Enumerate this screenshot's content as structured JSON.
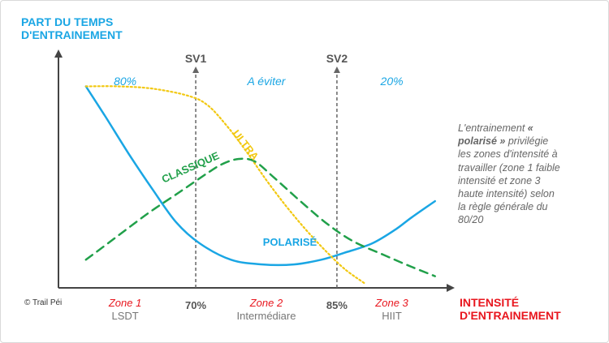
{
  "chart_data": {
    "type": "line",
    "title": "",
    "ylabel": "PART DU TEMPS D'ENTRAINEMENT",
    "xlabel": "INTENSITÉ D'ENTRAINEMENT",
    "xlim": [
      0,
      100
    ],
    "ylim": [
      0,
      100
    ],
    "thresholds": [
      {
        "name": "SV1",
        "x": 35,
        "tick_label": "70%"
      },
      {
        "name": "SV2",
        "x": 71,
        "tick_label": "85%"
      }
    ],
    "bands": [
      {
        "label": "80%",
        "x": 17
      },
      {
        "label": "A éviter",
        "x": 53
      },
      {
        "label": "20%",
        "x": 85
      }
    ],
    "zones": [
      {
        "name": "Zone 1",
        "sub": "LSDT",
        "x": 17
      },
      {
        "name": "Zone 2",
        "sub": "Intermédiare",
        "x": 53
      },
      {
        "name": "Zone 3",
        "sub": "HIIT",
        "x": 85
      }
    ],
    "series": [
      {
        "name": "POLARISÉ",
        "color": "#1aa6e4",
        "style": "solid",
        "label_at": [
          59,
          18
        ],
        "points": [
          [
            7,
            86
          ],
          [
            12,
            73
          ],
          [
            18,
            57
          ],
          [
            24,
            42
          ],
          [
            30,
            28
          ],
          [
            36,
            19
          ],
          [
            44,
            12
          ],
          [
            52,
            10
          ],
          [
            60,
            10
          ],
          [
            67,
            12
          ],
          [
            73,
            15
          ],
          [
            80,
            19
          ],
          [
            86,
            25
          ],
          [
            90,
            30
          ],
          [
            96,
            37
          ]
        ]
      },
      {
        "name": "ULTRA",
        "color": "#f2c811",
        "style": "dotted",
        "label_at": [
          47,
          60
        ],
        "points": [
          [
            7,
            86
          ],
          [
            15,
            86
          ],
          [
            24,
            85
          ],
          [
            33,
            82
          ],
          [
            38,
            78
          ],
          [
            43,
            69
          ],
          [
            48,
            58
          ],
          [
            53,
            46
          ],
          [
            58,
            35
          ],
          [
            63,
            25
          ],
          [
            68,
            16
          ],
          [
            73,
            8
          ],
          [
            78,
            2
          ]
        ]
      },
      {
        "name": "CLASSIQUE",
        "color": "#21a04a",
        "style": "dashed",
        "label_at": [
          34,
          50
        ],
        "points": [
          [
            7,
            12
          ],
          [
            15,
            22
          ],
          [
            23,
            32
          ],
          [
            31,
            41
          ],
          [
            38,
            49
          ],
          [
            42,
            53
          ],
          [
            46,
            55
          ],
          [
            50,
            54
          ],
          [
            55,
            47
          ],
          [
            61,
            38
          ],
          [
            68,
            28
          ],
          [
            75,
            20
          ],
          [
            83,
            14
          ],
          [
            90,
            9
          ],
          [
            96,
            5
          ]
        ]
      }
    ]
  },
  "axes": {
    "y_title_line1": "PART DU TEMPS",
    "y_title_line2": "D'ENTRAINEMENT",
    "x_title_line1": "INTENSITÉ",
    "x_title_line2": "D'ENTRAINEMENT"
  },
  "credit": "© Trail Péi",
  "side_note": {
    "part1": "L'entrainement",
    "emph": "« polarisé »",
    "part2": "privilégie les zones d'intensité à travailler (zone 1 faible intensité et zone 3 haute intensité) selon la règle générale du 80/20"
  },
  "colors": {
    "axis": "#444444",
    "threshold": "#666666",
    "y_title": "#1aa6e4",
    "x_title": "#e8161e"
  }
}
